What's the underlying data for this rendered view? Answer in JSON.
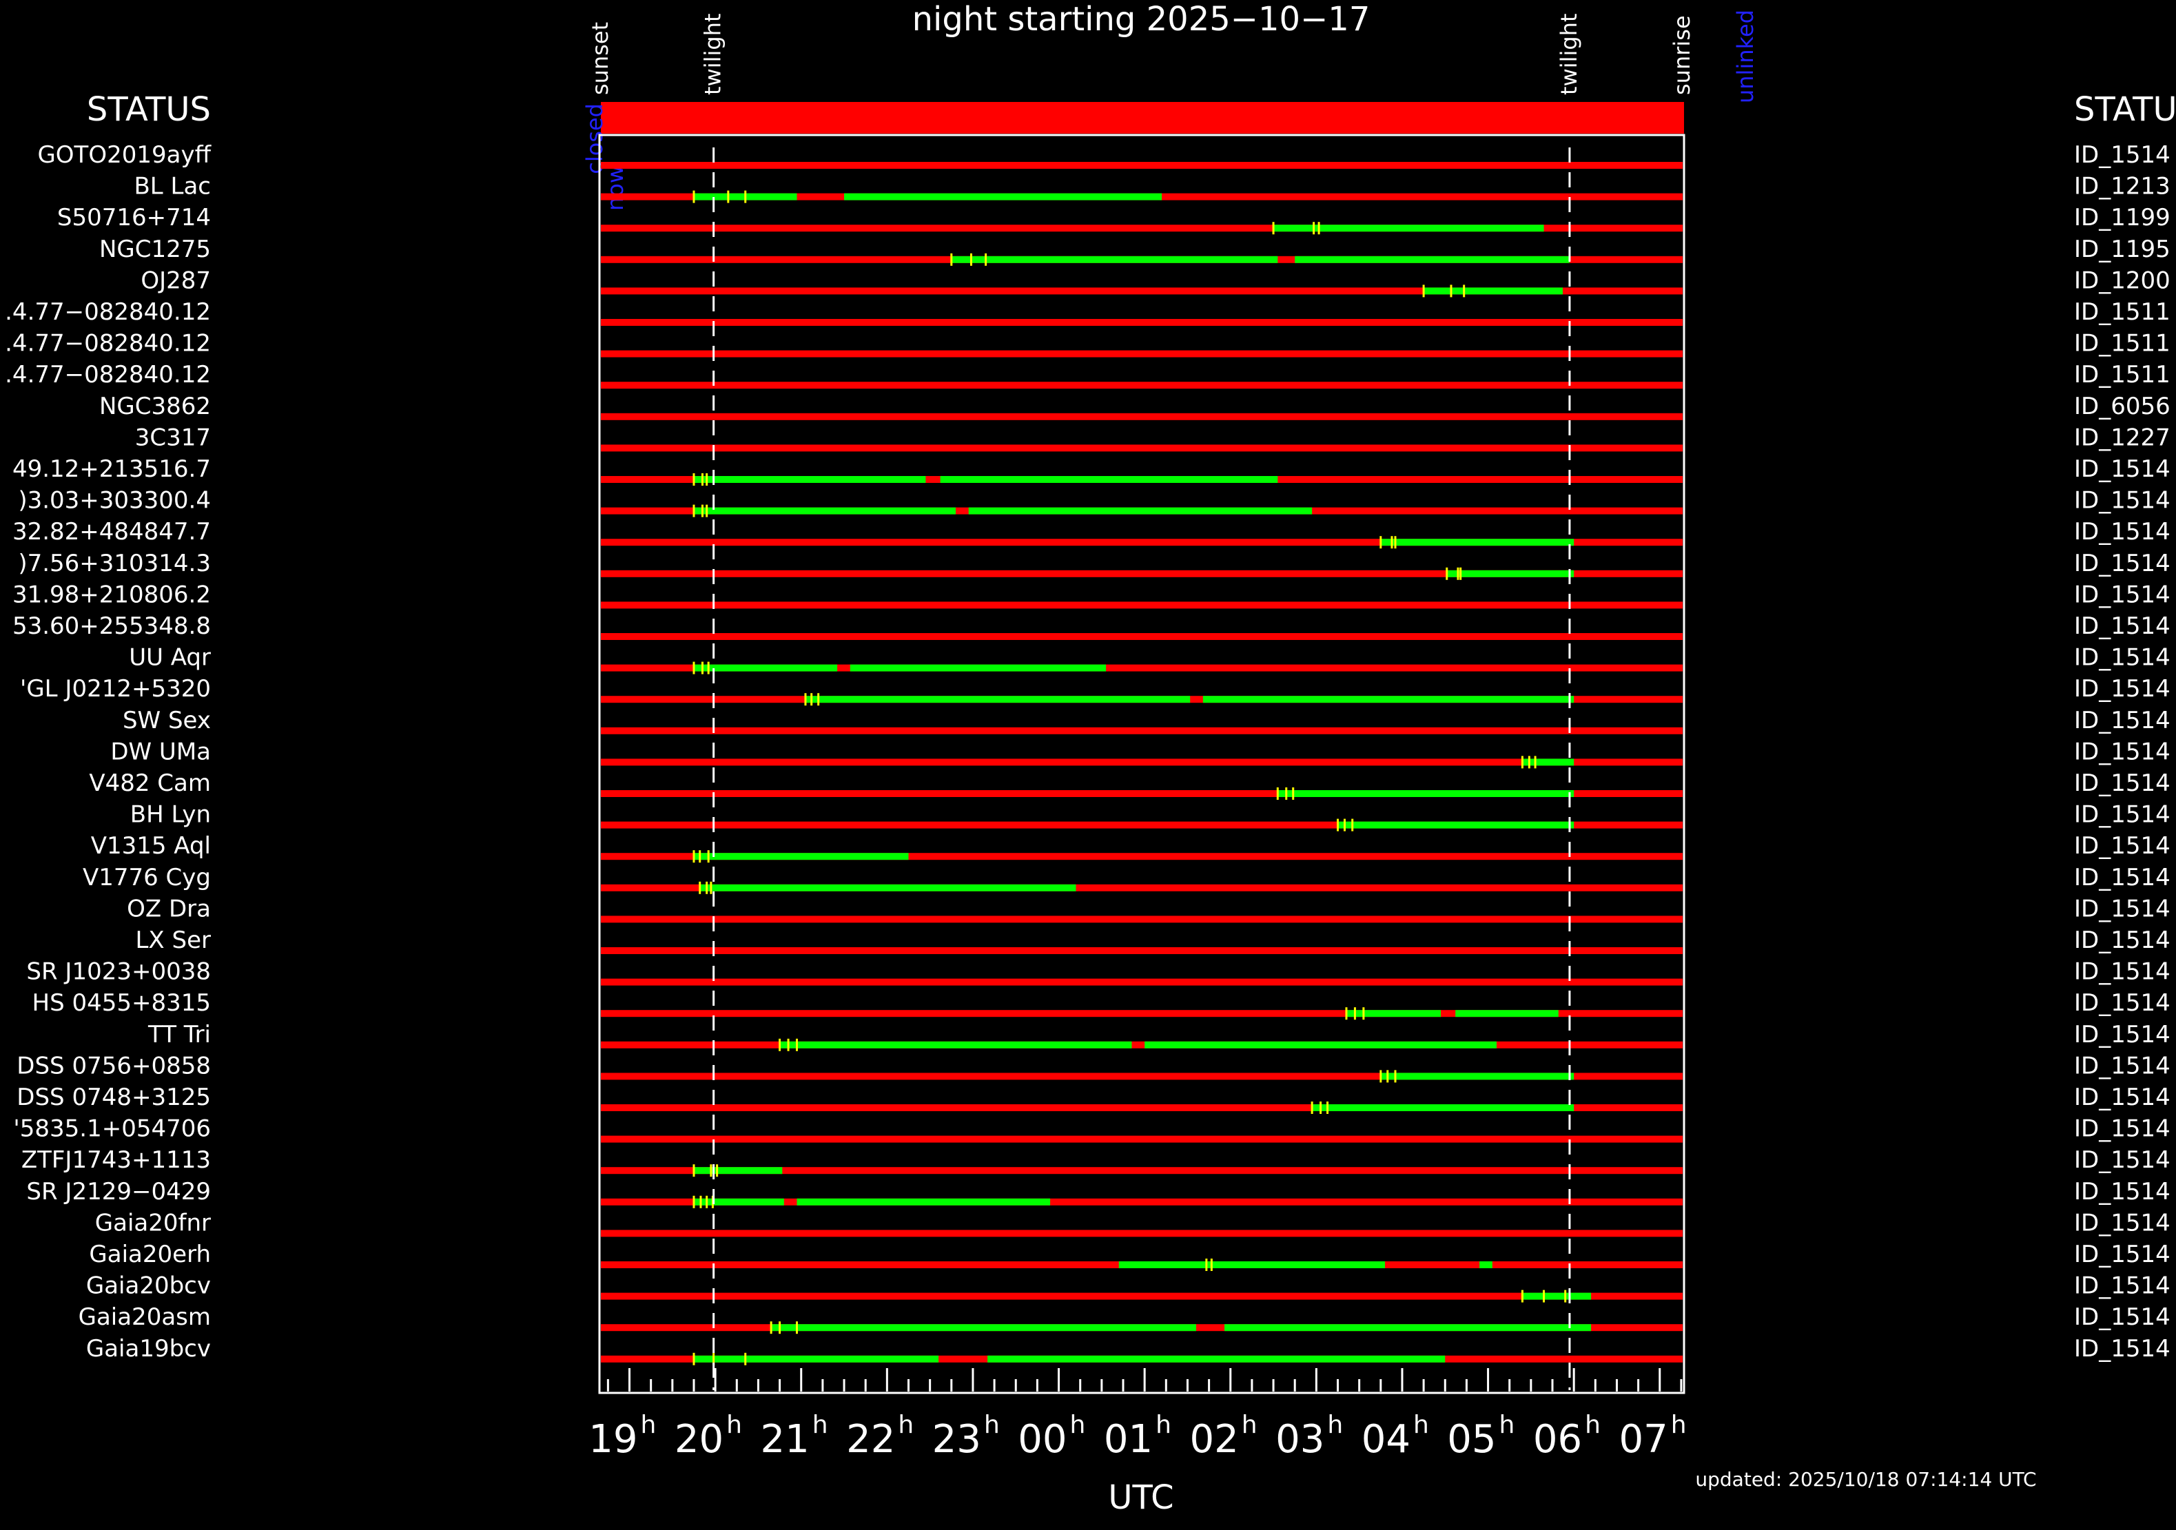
{
  "chart_data": {
    "type": "timeline",
    "title": "night starting 2025−10−17",
    "xlabel": "UTC",
    "updated": "updated: 2025/10/18 07:14:14 UTC",
    "left_header": "STATUS",
    "right_header": "STATU",
    "x_range_hours": [
      18.6667,
      31.2667
    ],
    "x_ticks": [
      {
        "h": 19,
        "label": "19",
        "sup": "h"
      },
      {
        "h": 20,
        "label": "20",
        "sup": "h"
      },
      {
        "h": 21,
        "label": "21",
        "sup": "h"
      },
      {
        "h": 22,
        "label": "22",
        "sup": "h"
      },
      {
        "h": 23,
        "label": "23",
        "sup": "h"
      },
      {
        "h": 24,
        "label": "00",
        "sup": "h"
      },
      {
        "h": 25,
        "label": "01",
        "sup": "h"
      },
      {
        "h": 26,
        "label": "02",
        "sup": "h"
      },
      {
        "h": 27,
        "label": "03",
        "sup": "h"
      },
      {
        "h": 28,
        "label": "04",
        "sup": "h"
      },
      {
        "h": 29,
        "label": "05",
        "sup": "h"
      },
      {
        "h": 30,
        "label": "06",
        "sup": "h"
      },
      {
        "h": 31,
        "label": "07",
        "sup": "h"
      }
    ],
    "events": [
      {
        "name": "sunset",
        "h": 18.6667
      },
      {
        "name": "twilight",
        "h": 19.98
      },
      {
        "name": "twilight",
        "h": 29.95
      },
      {
        "name": "sunrise",
        "h": 31.2667
      }
    ],
    "dome": {
      "start": "closed",
      "end": "unlinked",
      "now_label": "now"
    },
    "colors": {
      "unobservable": "#ff0000",
      "observable": "#00ff00",
      "marker": "#ffff00",
      "twilight_line": "#ffffff",
      "dome_label": "#0000ff"
    },
    "targets": [
      {
        "name": "GOTO2019ayff",
        "id": "ID_1514",
        "green": [],
        "ticks": []
      },
      {
        "name": "BL Lac",
        "id": "ID_1213",
        "green": [
          [
            19.75,
            20.95
          ],
          [
            21.5,
            25.2
          ]
        ],
        "ticks": [
          19.75,
          20.15,
          20.35
        ]
      },
      {
        "name": "S50716+714",
        "id": "ID_1199",
        "green": [
          [
            26.5,
            29.65
          ]
        ],
        "ticks": [
          26.5,
          26.97,
          27.03
        ]
      },
      {
        "name": "NGC1275",
        "id": "ID_1195",
        "green": [
          [
            22.75,
            26.55
          ],
          [
            26.75,
            29.95
          ]
        ],
        "ticks": [
          22.75,
          22.98,
          23.15
        ]
      },
      {
        "name": "OJ287",
        "id": "ID_1200",
        "green": [
          [
            28.25,
            29.87
          ]
        ],
        "ticks": [
          28.25,
          28.57,
          28.72
        ]
      },
      {
        "name": ".4.77−082840.12",
        "id": "ID_1511",
        "green": [],
        "ticks": []
      },
      {
        "name": ".4.77−082840.12",
        "id": "ID_1511",
        "green": [],
        "ticks": []
      },
      {
        "name": ".4.77−082840.12",
        "id": "ID_1511",
        "green": [],
        "ticks": []
      },
      {
        "name": "NGC3862",
        "id": "ID_6056",
        "green": [],
        "ticks": []
      },
      {
        "name": "3C317",
        "id": "ID_1227",
        "green": [],
        "ticks": []
      },
      {
        "name": "49.12+213516.7",
        "id": "ID_1514",
        "green": [
          [
            19.75,
            22.45
          ],
          [
            22.62,
            26.55
          ]
        ],
        "ticks": [
          19.75,
          19.85,
          19.9
        ]
      },
      {
        "name": ")3.03+303300.4",
        "id": "ID_1514",
        "green": [
          [
            19.75,
            22.8
          ],
          [
            22.95,
            26.95
          ]
        ],
        "ticks": [
          19.75,
          19.85,
          19.9
        ]
      },
      {
        "name": "32.82+484847.7",
        "id": "ID_1514",
        "green": [
          [
            27.75,
            30.0
          ]
        ],
        "ticks": [
          27.75,
          27.88,
          27.92
        ]
      },
      {
        "name": ")7.56+310314.3",
        "id": "ID_1514",
        "green": [
          [
            28.52,
            30.0
          ]
        ],
        "ticks": [
          28.52,
          28.65,
          28.68
        ]
      },
      {
        "name": "31.98+210806.2",
        "id": "ID_1514",
        "green": [],
        "ticks": []
      },
      {
        "name": "53.60+255348.8",
        "id": "ID_1514",
        "green": [],
        "ticks": []
      },
      {
        "name": "UU Aqr",
        "id": "ID_1514",
        "green": [
          [
            19.75,
            21.42
          ],
          [
            21.57,
            24.55
          ]
        ],
        "ticks": [
          19.75,
          19.85,
          19.92
        ]
      },
      {
        "name": "'GL J0212+5320",
        "id": "ID_1514",
        "green": [
          [
            21.05,
            25.53
          ],
          [
            25.68,
            30.0
          ]
        ],
        "ticks": [
          21.05,
          21.12,
          21.2
        ]
      },
      {
        "name": "SW Sex",
        "id": "ID_1514",
        "green": [],
        "ticks": []
      },
      {
        "name": "DW UMa",
        "id": "ID_1514",
        "green": [
          [
            29.4,
            30.0
          ]
        ],
        "ticks": [
          29.4,
          29.48,
          29.55
        ]
      },
      {
        "name": "V482 Cam",
        "id": "ID_1514",
        "green": [
          [
            26.55,
            30.0
          ]
        ],
        "ticks": [
          26.55,
          26.65,
          26.73
        ]
      },
      {
        "name": "BH Lyn",
        "id": "ID_1514",
        "green": [
          [
            27.25,
            30.0
          ]
        ],
        "ticks": [
          27.25,
          27.33,
          27.42
        ]
      },
      {
        "name": "V1315 Aql",
        "id": "ID_1514",
        "green": [
          [
            19.75,
            22.25
          ]
        ],
        "ticks": [
          19.75,
          19.82,
          19.92
        ]
      },
      {
        "name": "V1776 Cyg",
        "id": "ID_1514",
        "green": [
          [
            19.82,
            24.2
          ]
        ],
        "ticks": [
          19.82,
          19.9,
          19.95
        ]
      },
      {
        "name": "OZ Dra",
        "id": "ID_1514",
        "green": [],
        "ticks": []
      },
      {
        "name": "LX Ser",
        "id": "ID_1514",
        "green": [],
        "ticks": []
      },
      {
        "name": "SR J1023+0038",
        "id": "ID_1514",
        "green": [],
        "ticks": []
      },
      {
        "name": "HS 0455+8315",
        "id": "ID_1514",
        "green": [
          [
            27.35,
            28.45
          ],
          [
            28.62,
            29.82
          ]
        ],
        "ticks": [
          27.35,
          27.45,
          27.55
        ]
      },
      {
        "name": "TT Tri",
        "id": "ID_1514",
        "green": [
          [
            20.75,
            24.85
          ],
          [
            25.0,
            29.1
          ]
        ],
        "ticks": [
          20.75,
          20.85,
          20.95
        ]
      },
      {
        "name": "DSS 0756+0858",
        "id": "ID_1514",
        "green": [
          [
            27.75,
            30.0
          ]
        ],
        "ticks": [
          27.75,
          27.83,
          27.92
        ]
      },
      {
        "name": "DSS 0748+3125",
        "id": "ID_1514",
        "green": [
          [
            26.95,
            30.0
          ]
        ],
        "ticks": [
          26.95,
          27.05,
          27.13
        ]
      },
      {
        "name": "'5835.1+054706",
        "id": "ID_1514",
        "green": [],
        "ticks": []
      },
      {
        "name": "ZTFJ1743+1113",
        "id": "ID_1514",
        "green": [
          [
            19.75,
            20.78
          ]
        ],
        "ticks": [
          19.75,
          19.95,
          20.02
        ]
      },
      {
        "name": "SR J2129−0429",
        "id": "ID_1514",
        "green": [
          [
            19.75,
            20.8
          ],
          [
            20.95,
            23.9
          ]
        ],
        "ticks": [
          19.75,
          19.83,
          19.9,
          19.97
        ]
      },
      {
        "name": "Gaia20fnr",
        "id": "ID_1514",
        "green": [],
        "ticks": []
      },
      {
        "name": "Gaia20erh",
        "id": "ID_1514",
        "green": [
          [
            24.7,
            27.8
          ],
          [
            28.9,
            29.05
          ]
        ],
        "ticks": [
          25.72,
          25.78
        ]
      },
      {
        "name": "Gaia20bcv",
        "id": "ID_1514",
        "green": [
          [
            29.4,
            30.2
          ]
        ],
        "ticks": [
          29.4,
          29.65,
          29.9
        ]
      },
      {
        "name": "Gaia20asm",
        "id": "ID_1514",
        "green": [
          [
            20.65,
            25.6
          ],
          [
            25.93,
            30.2
          ]
        ],
        "ticks": [
          20.65,
          20.75,
          20.95
        ]
      },
      {
        "name": "Gaia19bcv",
        "id": "ID_1514",
        "green": [
          [
            19.75,
            22.6
          ],
          [
            23.17,
            28.5
          ]
        ],
        "ticks": [
          19.75,
          19.98,
          20.35
        ]
      }
    ]
  }
}
